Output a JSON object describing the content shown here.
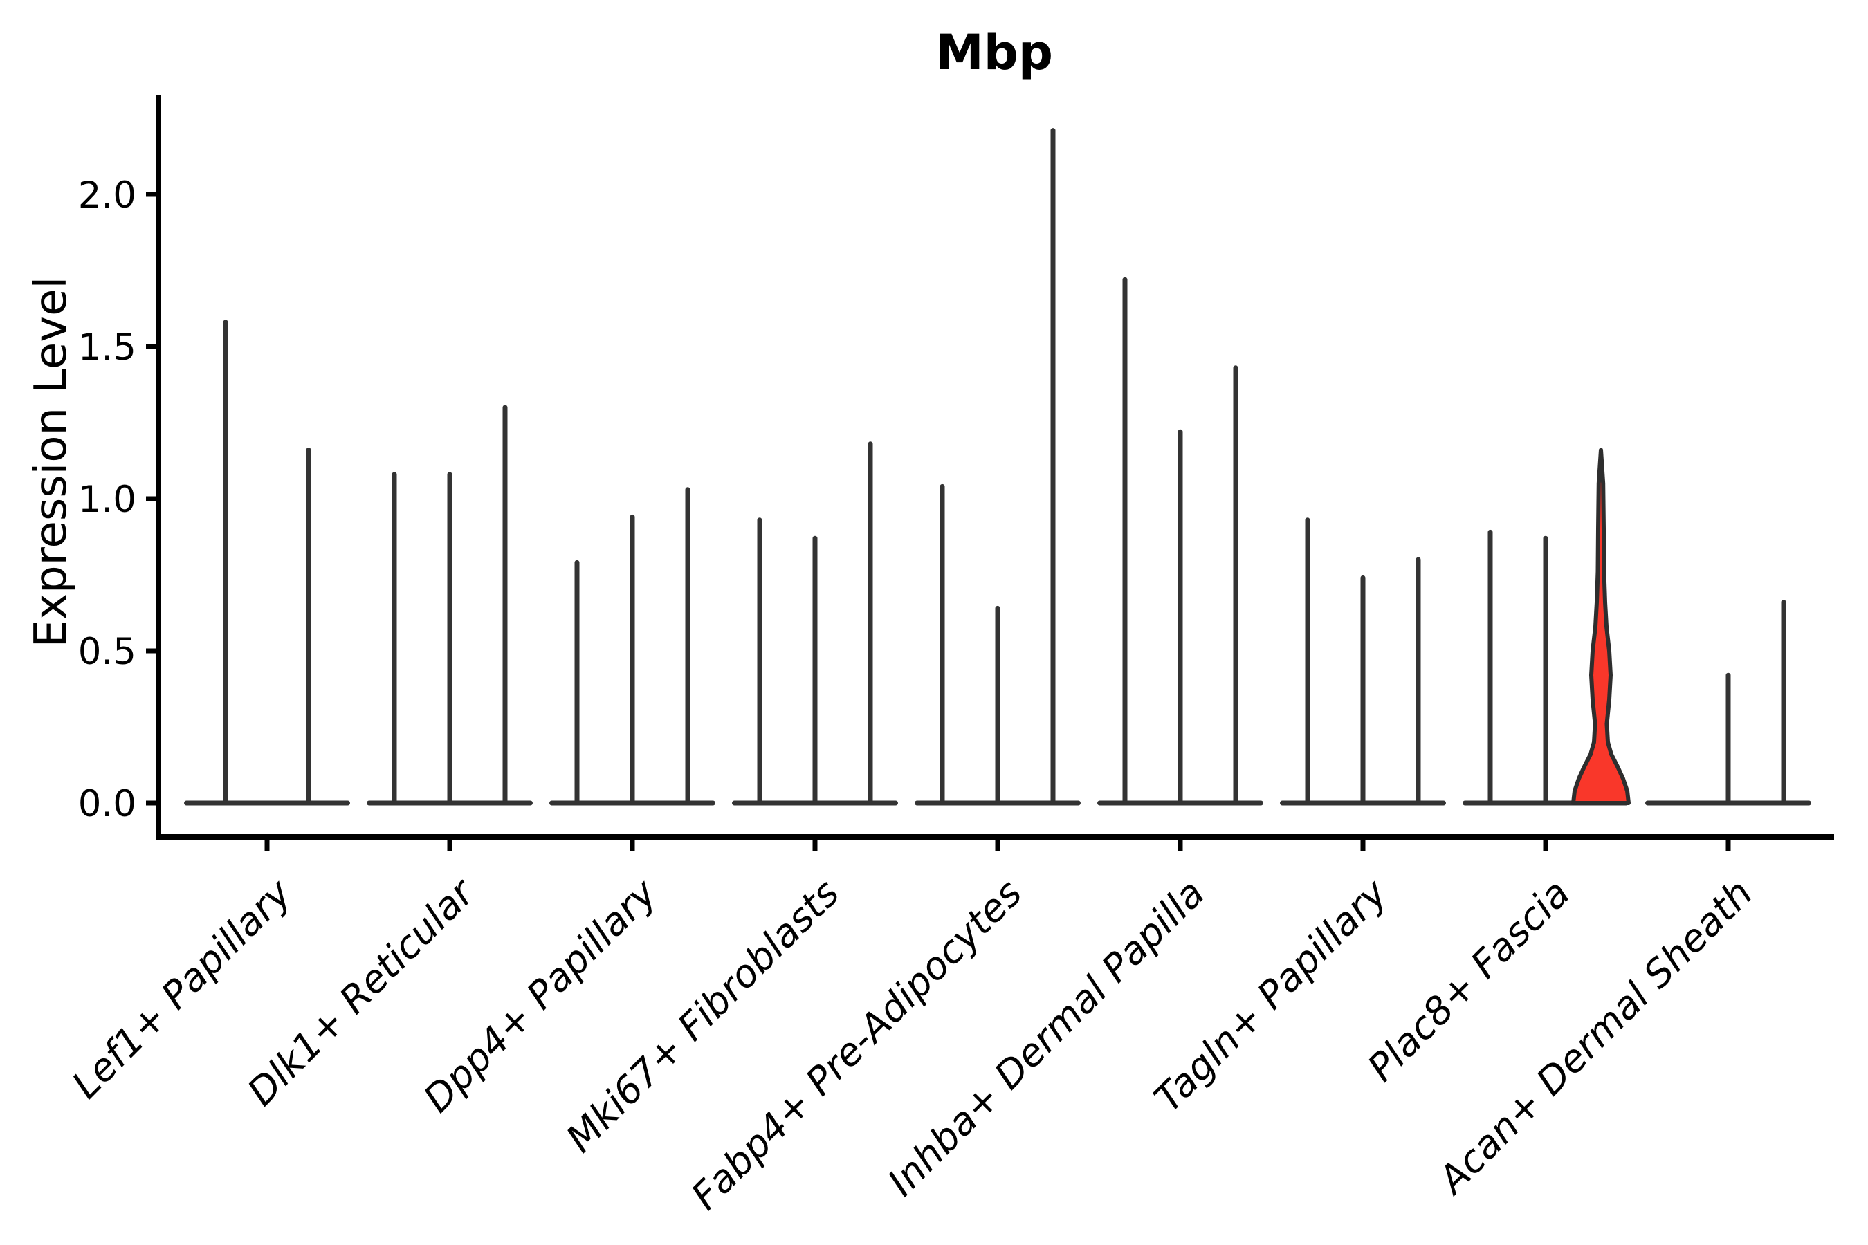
{
  "chart_data": {
    "type": "violin",
    "title": "Mbp",
    "ylabel": "Expression Level",
    "xlabel": "",
    "yticks": [
      0.0,
      0.5,
      1.0,
      1.5,
      2.0
    ],
    "ytick_labels": [
      "0.0",
      "0.5",
      "1.0",
      "1.5",
      "2.0"
    ],
    "ylim": [
      -0.12,
      2.33
    ],
    "grid": false,
    "legend": false,
    "background_color": "#ffffff",
    "violin_line_color": "#333333",
    "axis_color": "#000000",
    "highlight_fill": "#F9372A",
    "highlight_stroke": "#2E2E2E",
    "groups": [
      {
        "label": "Lef1+ Papillary",
        "violin_max": [
          1.58,
          1.16
        ]
      },
      {
        "label": "Dlk1+ Reticular",
        "violin_max": [
          1.08,
          1.08,
          1.3
        ]
      },
      {
        "label": "Dpp4+ Papillary",
        "violin_max": [
          0.79,
          0.94,
          1.03
        ]
      },
      {
        "label": "Mki67+ Fibroblasts",
        "violin_max": [
          0.93,
          0.87,
          1.18
        ]
      },
      {
        "label": "Fabp4+ Pre-Adipocytes",
        "violin_max": [
          1.04,
          0.64,
          2.21
        ]
      },
      {
        "label": "Inhba+ Dermal Papilla",
        "violin_max": [
          1.72,
          1.22,
          1.43
        ]
      },
      {
        "label": "Tagln+ Papillary",
        "violin_max": [
          0.93,
          0.74,
          0.8
        ]
      },
      {
        "label": "Plac8+ Fascia",
        "violin_max": [
          0.89,
          0.87,
          1.16
        ],
        "highlight_index": 2
      },
      {
        "label": "Acan+ Dermal Sheath",
        "violin_max": [
          0.0,
          0.42,
          0.66
        ]
      }
    ],
    "highlight_profile": [
      [
        0.0,
        40.0
      ],
      [
        0.04,
        38.0
      ],
      [
        0.08,
        32.0
      ],
      [
        0.12,
        24.0
      ],
      [
        0.16,
        15.0
      ],
      [
        0.2,
        10.0
      ],
      [
        0.26,
        8.5
      ],
      [
        0.34,
        12.0
      ],
      [
        0.42,
        14.0
      ],
      [
        0.5,
        12.0
      ],
      [
        0.58,
        8.0
      ],
      [
        0.66,
        6.0
      ],
      [
        0.76,
        4.5
      ],
      [
        0.9,
        4.0
      ],
      [
        1.05,
        3.2
      ],
      [
        1.16,
        0.0
      ]
    ]
  }
}
